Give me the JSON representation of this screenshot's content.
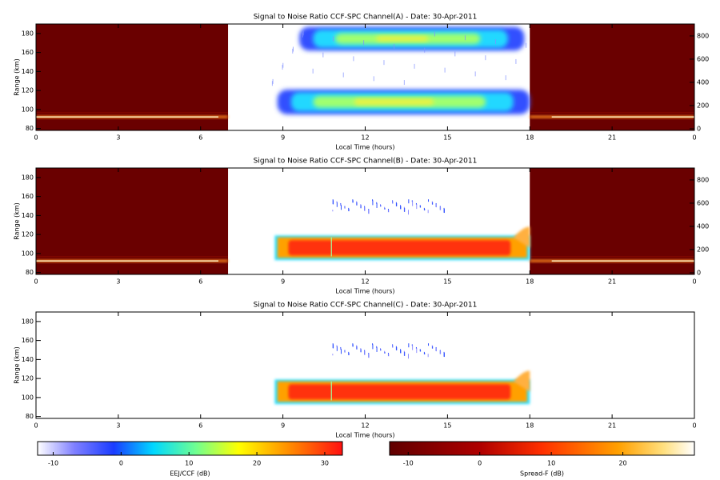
{
  "chart_data": [
    {
      "type": "heatmap",
      "title": "Signal to Noise Ratio CCF-SPC Channel(A) - Date: 30-Apr-2011",
      "x_label": "Local Time (hours)",
      "y_label": "Range (km)",
      "xlim": [
        0,
        24
      ],
      "xticks": [
        0,
        3,
        6,
        9,
        12,
        15,
        18,
        21,
        {
          "value": 24,
          "label": "0"
        }
      ],
      "ylim": [
        78,
        190
      ],
      "yticks": [
        80,
        100,
        120,
        140,
        160,
        180
      ],
      "y2lim": [
        -14,
        903
      ],
      "y2ticks": [
        0,
        200,
        400,
        600,
        800
      ]
    },
    {
      "type": "heatmap",
      "title": "Signal to Noise Ratio CCF-SPC Channel(B) - Date: 30-Apr-2011",
      "x_label": "Local Time (hours)",
      "y_label": "Range (km)",
      "xlim": [
        0,
        24
      ],
      "xticks": [
        0,
        3,
        6,
        9,
        12,
        15,
        18,
        21,
        {
          "value": 24,
          "label": "0"
        }
      ],
      "ylim": [
        78,
        190
      ],
      "yticks": [
        80,
        100,
        120,
        140,
        160,
        180
      ],
      "y2lim": [
        -14,
        903
      ],
      "y2ticks": [
        0,
        200,
        400,
        600,
        800
      ]
    },
    {
      "type": "heatmap",
      "title": "Signal to Noise Ratio CCF-SPC Channel(C) - Date: 30-Apr-2011",
      "x_label": "Local Time (hours)",
      "y_label": "Range (km)",
      "xlim": [
        0,
        24
      ],
      "xticks": [
        0,
        3,
        6,
        9,
        12,
        15,
        18,
        21,
        {
          "value": 24,
          "label": "0"
        }
      ],
      "ylim": [
        78,
        190
      ],
      "yticks": [
        80,
        100,
        120,
        140,
        160,
        180
      ]
    }
  ],
  "colorbars": [
    {
      "label": "EEJ/CCF (dB)",
      "lim": [
        -12.3,
        32.6
      ],
      "ticks": [
        -10,
        0,
        10,
        20,
        30
      ]
    },
    {
      "label": "Spread-F (dB)",
      "lim": [
        -12.6,
        30
      ],
      "ticks": [
        -10,
        0,
        10,
        20
      ]
    }
  ]
}
